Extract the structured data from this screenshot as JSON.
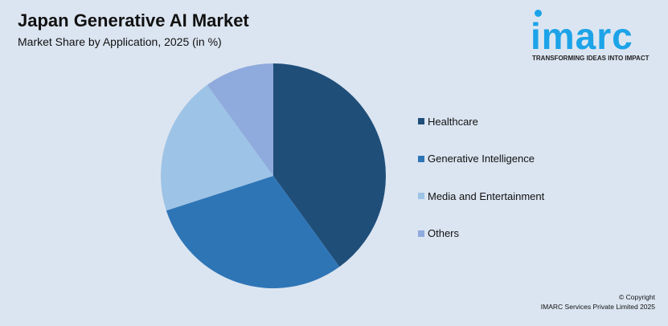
{
  "header": {
    "title": "Japan Generative AI Market",
    "subtitle": "Market Share by Application, 2025 (in %)"
  },
  "logo": {
    "text": "imarc",
    "tagline": "TRANSFORMING IDEAS INTO IMPACT"
  },
  "chart_data": {
    "type": "pie",
    "title": "Japan Generative AI Market",
    "subtitle": "Market Share by Application, 2025 (in %)",
    "categories": [
      "Healthcare",
      "Generative Intelligence",
      "Media and Entertainment",
      "Others"
    ],
    "values": [
      40,
      30,
      20,
      10
    ],
    "colors": [
      "#1f4e79",
      "#2e75b6",
      "#9dc3e6",
      "#8faadc"
    ],
    "start_angle": "12 o'clock, clockwise",
    "legend_placement": "right"
  },
  "footer": {
    "copyright": "© Copyright",
    "company": "IMARC Services Private Limited 2025"
  }
}
